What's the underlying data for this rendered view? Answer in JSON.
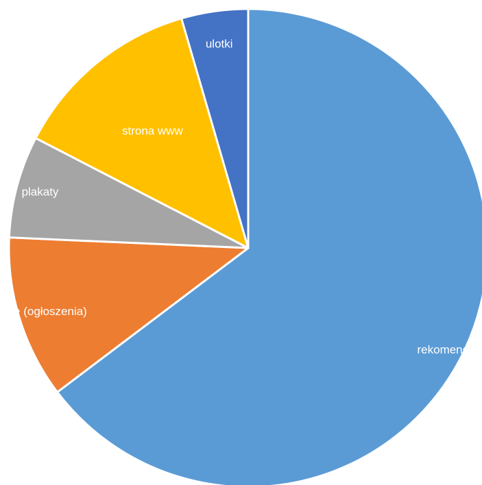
{
  "chart_data": {
    "type": "pie",
    "title": "",
    "start_angle_deg": 0,
    "direction": "clockwise",
    "slices": [
      {
        "label": "rekomendacja",
        "value": 64.7,
        "color": "#5B9BD5"
      },
      {
        "label": "inne (ogłoszenia)",
        "value": 11.0,
        "color": "#ED7D31"
      },
      {
        "label": "plakaty",
        "value": 6.9,
        "color": "#A5A5A5"
      },
      {
        "label": "strona www",
        "value": 12.9,
        "color": "#FFC000"
      },
      {
        "label": "ulotki",
        "value": 4.5,
        "color": "#4472C4"
      }
    ],
    "legend": "none",
    "data_labels": "category names inside slices"
  }
}
